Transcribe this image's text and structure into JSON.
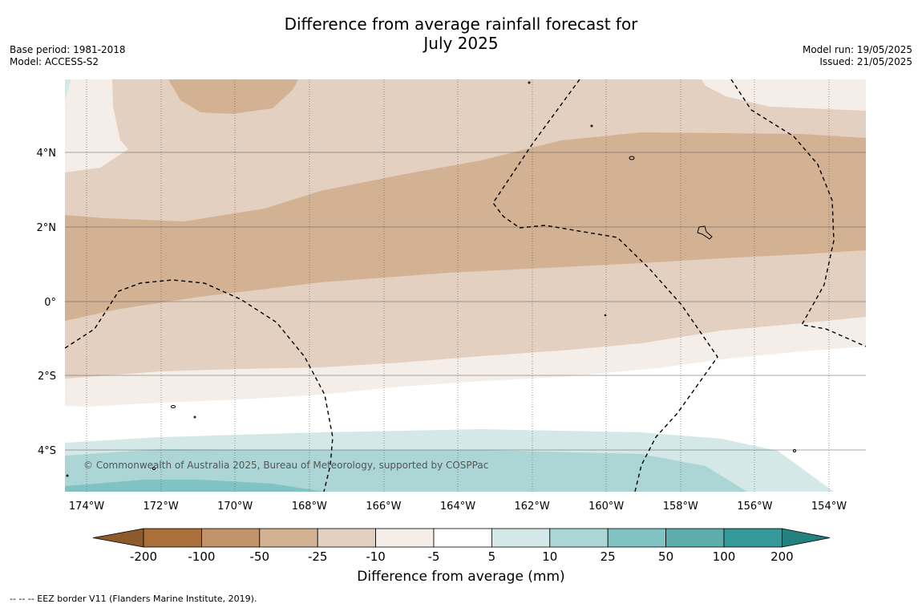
{
  "title_line1": "Difference from average rainfall forecast for",
  "title_line2": "July 2025",
  "base_period": "Base period: 1981-2018",
  "model": "Model: ACCESS-S2",
  "model_run": "Model run: 19/05/2025",
  "issued": "Issued: 21/05/2025",
  "copyright": "© Commonwealth of Australia 2025, Bureau of Meteorology, supported by COSPPac",
  "lon_labels": [
    "174°W",
    "172°W",
    "170°W",
    "168°W",
    "166°W",
    "164°W",
    "162°W",
    "160°W",
    "158°W",
    "156°W",
    "154°W"
  ],
  "lat_labels": [
    "4°N",
    "2°N",
    "0°",
    "2°S",
    "4°S"
  ],
  "colorbar": {
    "title": "Difference from average (mm)",
    "ticks": [
      "-200",
      "-100",
      "-50",
      "-25",
      "-10",
      "-5",
      "5",
      "10",
      "25",
      "50",
      "100",
      "200"
    ],
    "colors": [
      "#ab6f3a",
      "#c2936a",
      "#d3b294",
      "#e3d0c0",
      "#f5eee8",
      "#ffffff",
      "#d4e8e7",
      "#acd6d6",
      "#81c3c2",
      "#5eadad",
      "#35999a"
    ],
    "under_color": "#8c5a2b",
    "over_color": "#23817f"
  },
  "footnote": "--  --  -- EEZ border V11 (Flanders Marine Institute, 2019)."
}
